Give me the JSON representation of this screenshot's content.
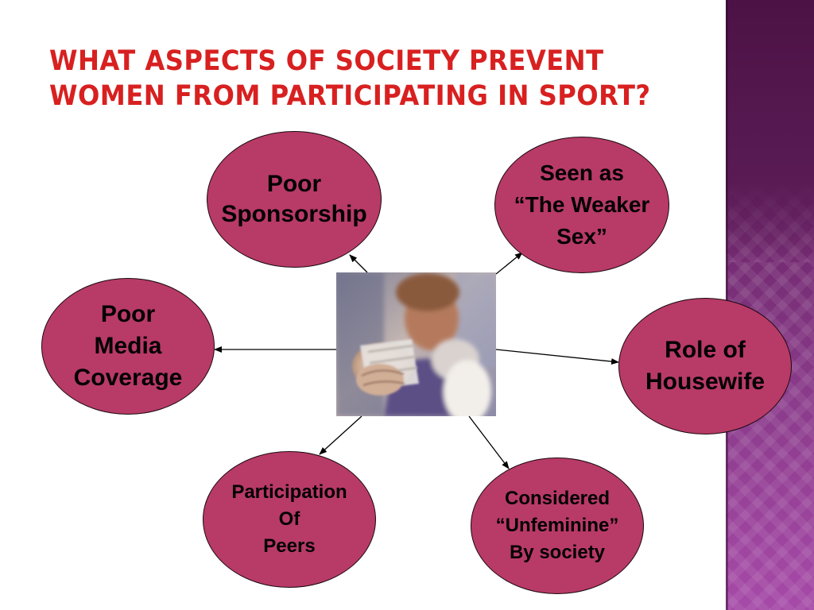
{
  "slide": {
    "title": "WHAT ASPECTS OF SOCIETY PREVENT WOMEN FROM PARTICIPATING IN SPORT?"
  },
  "diagram": {
    "nodes": [
      {
        "id": "poor-sponsorship",
        "label": "Poor\nSponsorship"
      },
      {
        "id": "weaker-sex",
        "label": "Seen as\n“The Weaker\nSex”"
      },
      {
        "id": "media-coverage",
        "label": "Poor\nMedia\nCoverage"
      },
      {
        "id": "housewife",
        "label": "Role of\nHousewife"
      },
      {
        "id": "peers",
        "label": "Participation\nOf\nPeers"
      },
      {
        "id": "unfeminine",
        "label": "Considered\n“Unfeminine”\nBy society"
      }
    ],
    "center_image": "boxer-woman-punching-photo",
    "colors": {
      "node_fill": "#b83a67",
      "title": "#d82020",
      "sidebar": "#6a2467"
    }
  }
}
